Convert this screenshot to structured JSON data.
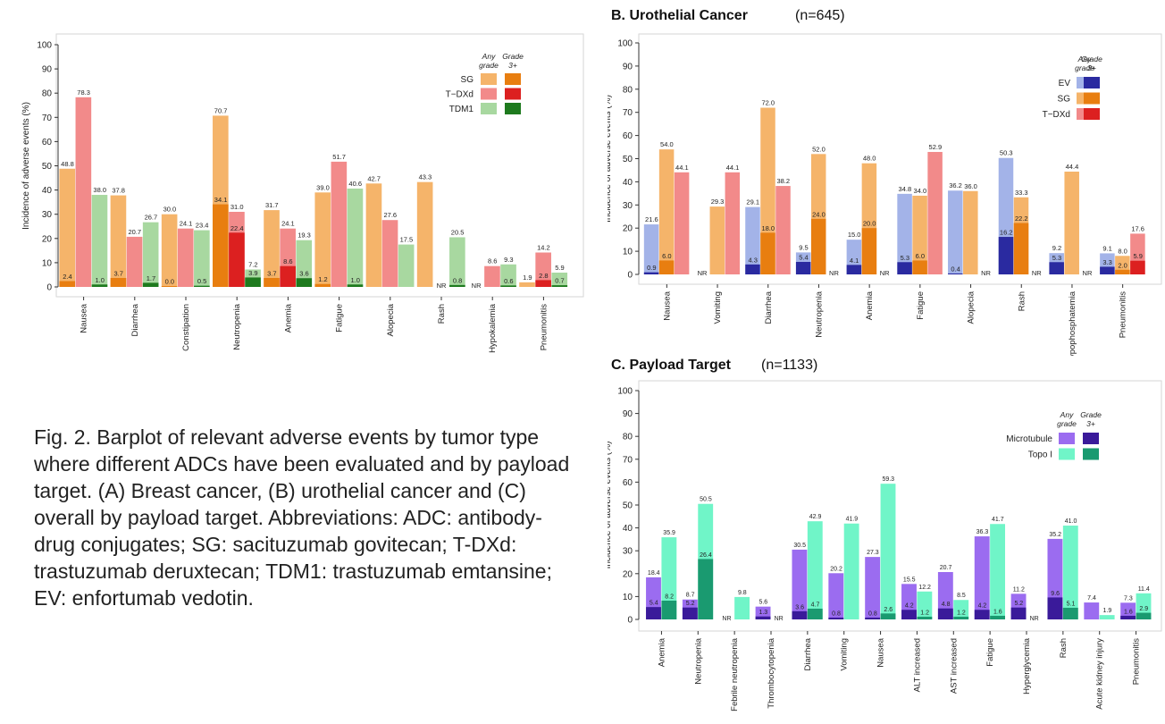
{
  "caption": "Fig. 2. Barplot of relevant adverse events by tumor type where different ADCs have been evaluated and by payload target. (A) Breast cancer, (B) urothelial cancer and (C) overall by payload target. Abbreviations: ADC: antibody-drug conjugates; SG: sacituzumab govitecan; T-DXd: trastuzumab deruxtecan; TDM1: trastuzumab emtansine; EV: enfortumab vedotin.",
  "legend_headers": {
    "any": "Any grade",
    "grade3": "Grade 3+"
  },
  "chart_data": [
    {
      "id": "A",
      "type": "bar",
      "title": "",
      "n_label": "",
      "ylabel": "Incidence of adverse events (%)",
      "ylim": [
        0,
        100
      ],
      "yticks": [
        0,
        10,
        20,
        30,
        40,
        50,
        60,
        70,
        80,
        90,
        100
      ],
      "legend_position": "top-right",
      "categories": [
        "Nausea",
        "Diarrhea",
        "Constipation",
        "Neutropenia",
        "Anemia",
        "Fatigue",
        "Alopecia",
        "Rash",
        "Hypokalemia",
        "Pneumonitis"
      ],
      "series": [
        {
          "name": "SG",
          "any_color": "#f5b46a",
          "g3_color": "#e87e10",
          "any": [
            48.8,
            37.8,
            30.0,
            70.7,
            31.7,
            39.0,
            42.7,
            43.3,
            "NR",
            1.9
          ],
          "g3": [
            2.4,
            3.7,
            0.0,
            34.1,
            3.7,
            1.2,
            null,
            null,
            null,
            null
          ]
        },
        {
          "name": "T−DXd",
          "any_color": "#f28a8a",
          "g3_color": "#dc2020",
          "any": [
            78.3,
            20.7,
            24.1,
            31.0,
            24.1,
            51.7,
            27.6,
            "NR",
            8.6,
            14.2
          ],
          "g3": [
            null,
            null,
            null,
            22.4,
            8.6,
            null,
            null,
            null,
            null,
            2.8
          ]
        },
        {
          "name": "TDM1",
          "any_color": "#a8d8a0",
          "g3_color": "#1e7a1e",
          "any": [
            38.0,
            26.7,
            23.4,
            7.2,
            19.3,
            40.6,
            17.5,
            20.5,
            9.3,
            5.9
          ],
          "g3": [
            1.0,
            1.7,
            0.5,
            3.9,
            3.6,
            1.0,
            null,
            0.8,
            0.6,
            0.7
          ]
        }
      ]
    },
    {
      "id": "B",
      "type": "bar",
      "title": "B. Urothelial Cancer",
      "n_label": "(n=645)",
      "ylabel": "Incidence of adverse events (%)",
      "ylim": [
        0,
        100
      ],
      "yticks": [
        0,
        10,
        20,
        30,
        40,
        50,
        60,
        70,
        80,
        90,
        100
      ],
      "legend_position": "top-right",
      "categories": [
        "Nausea",
        "Vomiting",
        "Diarrhea",
        "Neutropenia",
        "Anemia",
        "Fatigue",
        "Alopecia",
        "Rash",
        "Hypophosphatemia",
        "Pneumonitis"
      ],
      "series": [
        {
          "name": "EV",
          "any_color": "#a3b3e8",
          "g3_color": "#2a2aa0",
          "any": [
            21.6,
            "NR",
            29.1,
            9.5,
            15.0,
            34.8,
            36.2,
            50.3,
            9.2,
            9.1
          ],
          "g3": [
            0.9,
            null,
            4.3,
            5.4,
            4.1,
            5.3,
            0.4,
            16.2,
            5.3,
            3.3
          ]
        },
        {
          "name": "SG",
          "any_color": "#f5b46a",
          "g3_color": "#e87e10",
          "any": [
            54.0,
            29.3,
            72.0,
            52.0,
            48.0,
            34.0,
            36.0,
            33.3,
            44.4,
            8.0
          ],
          "g3": [
            6.0,
            null,
            18.0,
            24.0,
            20.0,
            6.0,
            null,
            22.2,
            null,
            2.0
          ]
        },
        {
          "name": "T−DXd",
          "any_color": "#f28a8a",
          "g3_color": "#dc2020",
          "any": [
            44.1,
            44.1,
            38.2,
            "NR",
            "NR",
            52.9,
            "NR",
            "NR",
            "NR",
            17.6
          ],
          "g3": [
            null,
            null,
            null,
            null,
            null,
            null,
            null,
            null,
            null,
            5.9
          ]
        }
      ]
    },
    {
      "id": "C",
      "type": "bar",
      "title": "C. Payload Target",
      "n_label": "(n=1133)",
      "ylabel": "Incidence of adverse events (%)",
      "ylim": [
        0,
        100
      ],
      "yticks": [
        0,
        10,
        20,
        30,
        40,
        50,
        60,
        70,
        80,
        90,
        100
      ],
      "legend_position": "top-right",
      "categories": [
        "Anemia",
        "Neutropenia",
        "Febrile neutropenia",
        "Thrombocytopenia",
        "Diarrhea",
        "Vomiting",
        "Nausea",
        "ALT increased",
        "AST increased",
        "Fatigue",
        "Hyperglycemia",
        "Rash",
        "Acute kidney injury",
        "Pneumonitis"
      ],
      "series": [
        {
          "name": "Microtubule",
          "any_color": "#9b6cf0",
          "g3_color": "#3a1a9a",
          "any": [
            18.4,
            8.7,
            "NR",
            5.6,
            30.5,
            20.2,
            27.3,
            15.5,
            20.7,
            36.3,
            11.2,
            35.2,
            7.4,
            7.3
          ],
          "g3": [
            5.4,
            5.2,
            null,
            1.3,
            3.6,
            0.8,
            0.8,
            4.2,
            4.8,
            4.2,
            5.2,
            9.6,
            null,
            1.6
          ]
        },
        {
          "name": "Topo I",
          "any_color": "#70f5c8",
          "g3_color": "#1a9a70",
          "any": [
            35.9,
            50.5,
            9.8,
            "NR",
            42.9,
            41.9,
            59.3,
            12.2,
            8.5,
            41.7,
            "NR",
            41.0,
            1.9,
            11.4
          ],
          "g3": [
            8.2,
            26.4,
            null,
            null,
            4.7,
            null,
            2.6,
            1.2,
            1.2,
            1.6,
            null,
            5.1,
            null,
            2.9
          ]
        }
      ]
    }
  ]
}
